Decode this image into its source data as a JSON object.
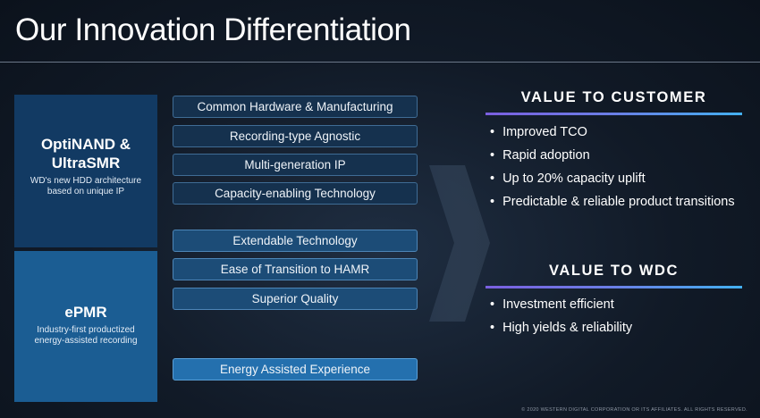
{
  "title": "Our Innovation Differentiation",
  "left": {
    "optinand": {
      "title_line1": "OptiNAND &",
      "title_line2": "UltraSMR",
      "sub_line1": "WD's new HDD architecture",
      "sub_line2": "based on unique IP"
    },
    "epmr": {
      "title": "ePMR",
      "sub_line1": "Industry-first productized",
      "sub_line2": "energy-assisted recording"
    }
  },
  "features": [
    "Common Hardware & Manufacturing",
    "Recording-type Agnostic",
    "Multi-generation IP",
    "Capacity-enabling Technology",
    "Extendable Technology",
    "Ease of Transition to HAMR",
    "Superior Quality",
    "Energy Assisted Experience"
  ],
  "value_customer": {
    "title": "VALUE TO CUSTOMER",
    "items": [
      "Improved TCO",
      "Rapid adoption",
      "Up to 20% capacity uplift",
      "Predictable & reliable product transitions"
    ]
  },
  "value_wdc": {
    "title": "VALUE TO WDC",
    "items": [
      "Investment efficient",
      "High yields & reliability"
    ]
  },
  "footer": "© 2020 WESTERN DIGITAL CORPORATION OR ITS AFFILIATES. ALL RIGHTS RESERVED."
}
